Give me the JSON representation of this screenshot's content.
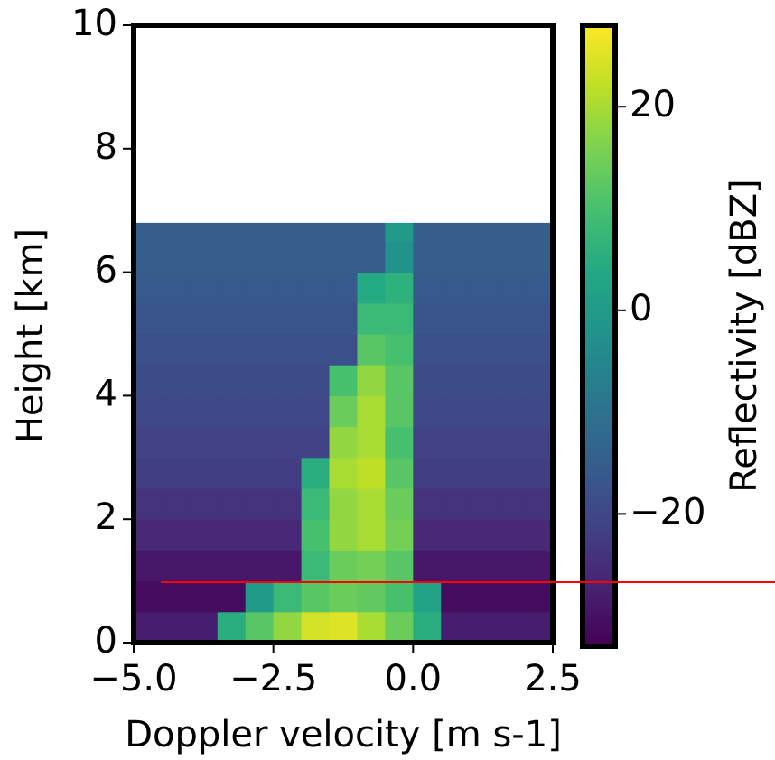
{
  "chart_data": {
    "type": "heatmap",
    "xlabel": "Doppler velocity [m s-1]",
    "ylabel": "Height [km]",
    "colorbar_label": "Reflectivity [dBZ]",
    "colormap": "viridis",
    "xlim": [
      -5,
      2.5
    ],
    "ylim": [
      0,
      10
    ],
    "clim": [
      -33,
      28
    ],
    "xticks": [
      {
        "value": -5,
        "label": "−5.0"
      },
      {
        "value": -2.5,
        "label": "−2.5"
      },
      {
        "value": 0,
        "label": "0.0"
      },
      {
        "value": 2.5,
        "label": "2.5"
      }
    ],
    "yticks": [
      0,
      2,
      4,
      6,
      8,
      10
    ],
    "cticks": [
      {
        "value": -20,
        "label": "−20"
      },
      0,
      20
    ],
    "x_edges": [
      -5,
      -4.5,
      -4,
      -3.5,
      -3,
      -2.5,
      -2,
      -1.5,
      -1,
      -0.5,
      0,
      0.5,
      1,
      1.5,
      2,
      2.5
    ],
    "y_edges": [
      0,
      0.5,
      1,
      1.5,
      2,
      2.5,
      3,
      3.5,
      4,
      4.5,
      5,
      5.5,
      6,
      6.5,
      6.8
    ],
    "z": [
      [
        -28,
        -28,
        -28,
        5,
        12,
        18,
        24,
        25,
        20,
        14,
        5,
        -28,
        -28,
        -28,
        -28
      ],
      [
        -31,
        -31,
        -31,
        -31,
        0,
        8,
        12,
        14,
        13,
        10,
        2,
        -31,
        -31,
        -31,
        -31
      ],
      [
        -29,
        -29,
        -29,
        -29,
        -29,
        -29,
        8,
        14,
        15,
        12,
        -29,
        -29,
        -29,
        -29,
        -29
      ],
      [
        -26,
        -26,
        -26,
        -26,
        -26,
        -26,
        10,
        18,
        20,
        15,
        -26,
        -26,
        -26,
        -26,
        -26
      ],
      [
        -24,
        -24,
        -24,
        -24,
        -24,
        -24,
        8,
        18,
        20,
        14,
        -24,
        -24,
        -24,
        -24,
        -24
      ],
      [
        -22,
        -22,
        -22,
        -22,
        -22,
        -22,
        5,
        20,
        22,
        12,
        -22,
        -22,
        -22,
        -22,
        -22
      ],
      [
        -21,
        -21,
        -21,
        -21,
        -21,
        -21,
        -21,
        18,
        20,
        10,
        -21,
        -21,
        -21,
        -21,
        -21
      ],
      [
        -20,
        -20,
        -20,
        -20,
        -20,
        -20,
        -20,
        14,
        20,
        12,
        -20,
        -20,
        -20,
        -20,
        -20
      ],
      [
        -19,
        -19,
        -19,
        -19,
        -19,
        -19,
        -19,
        10,
        18,
        12,
        -19,
        -19,
        -19,
        -19,
        -19
      ],
      [
        -18,
        -18,
        -18,
        -18,
        -18,
        -18,
        -18,
        -18,
        12,
        10,
        -18,
        -18,
        -18,
        -18,
        -18
      ],
      [
        -17,
        -17,
        -17,
        -17,
        -17,
        -17,
        -17,
        -17,
        8,
        8,
        -17,
        -17,
        -17,
        -17,
        -17
      ],
      [
        -16,
        -16,
        -16,
        -16,
        -16,
        -16,
        -16,
        -16,
        4,
        6,
        -16,
        -16,
        -16,
        -16,
        -16
      ],
      [
        -15,
        -15,
        -15,
        -15,
        -15,
        -15,
        -15,
        -15,
        -15,
        -2,
        -15,
        -15,
        -15,
        -15,
        -15
      ],
      [
        -15,
        -15,
        -15,
        -15,
        -15,
        -15,
        -15,
        -15,
        -15,
        0,
        -15,
        -15,
        -15,
        -15,
        -15
      ]
    ]
  }
}
